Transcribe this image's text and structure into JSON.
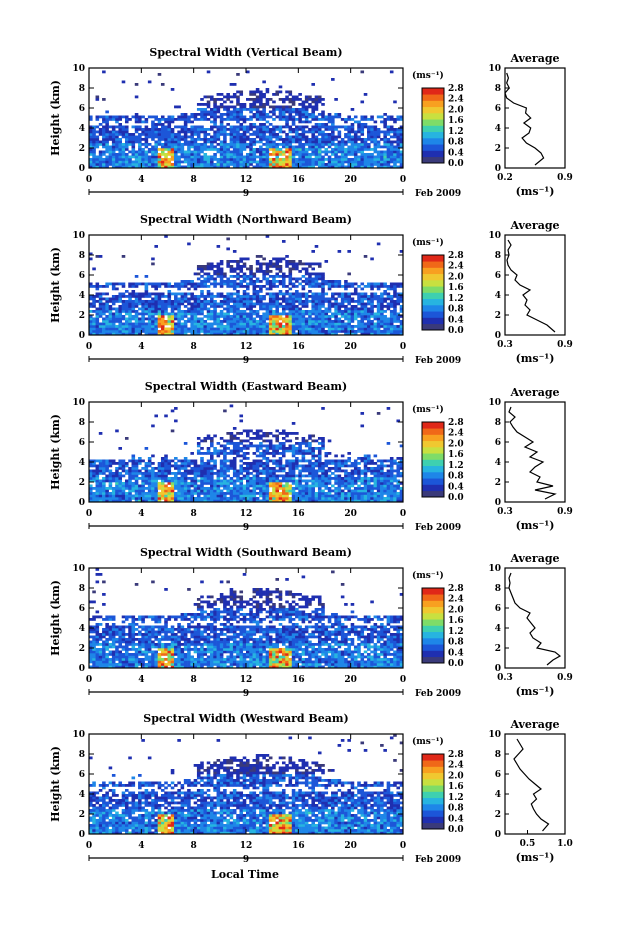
{
  "figure": {
    "x_axis_label": "Local Time",
    "date_label": "Feb 2009",
    "colorbar_unit": "(ms⁻¹)",
    "colorbar_ticks": [
      "0.0",
      "0.4",
      "0.8",
      "1.2",
      "1.6",
      "2.0",
      "2.4",
      "2.8"
    ],
    "colorbar_colors": [
      "#3a3a7a",
      "#1f2fb0",
      "#1c56d8",
      "#1e86e8",
      "#27b4e0",
      "#3ed0b0",
      "#7edc68",
      "#c8e040",
      "#f0c830",
      "#f8a020",
      "#f06818",
      "#e02818"
    ],
    "time_ticks": [
      "0",
      "4",
      "8",
      "12",
      "16",
      "20",
      "0"
    ],
    "day_label": "9",
    "height_ticks": [
      "0",
      "2",
      "4",
      "6",
      "8",
      "10"
    ],
    "height_label": "Height (km)",
    "profile_title": "Average",
    "profile_unit": "(ms⁻¹)"
  },
  "chart_data": [
    {
      "type": "heatmap",
      "title": "Spectral Width (Vertical Beam)",
      "ylabel": "Height (km)",
      "ylim": [
        0,
        10
      ],
      "xlim": [
        0,
        24
      ],
      "colorbar_range": [
        0.0,
        2.8
      ],
      "profile": {
        "title": "Average",
        "xlabel": "(ms⁻¹)",
        "x_ticks": [
          "0.2",
          "0.9"
        ],
        "xlim": [
          0.2,
          0.9
        ],
        "heights": [
          0.3,
          1.0,
          1.5,
          2.0,
          2.5,
          3.0,
          3.5,
          4.0,
          4.5,
          5.0,
          5.5,
          6.0,
          6.5,
          7.0,
          7.5,
          8.0,
          8.5,
          9.0,
          9.5
        ],
        "values": [
          0.55,
          0.65,
          0.62,
          0.55,
          0.45,
          0.4,
          0.48,
          0.5,
          0.42,
          0.5,
          0.44,
          0.45,
          0.3,
          0.22,
          0.2,
          0.25,
          0.22,
          0.24,
          0.22
        ]
      }
    },
    {
      "type": "heatmap",
      "title": "Spectral Width (Northward Beam)",
      "ylabel": "Height (km)",
      "ylim": [
        0,
        10
      ],
      "xlim": [
        0,
        24
      ],
      "colorbar_range": [
        0.0,
        2.8
      ],
      "profile": {
        "title": "Average",
        "xlabel": "(ms⁻¹)",
        "x_ticks": [
          "0.3",
          "0.9"
        ],
        "xlim": [
          0.3,
          0.9
        ],
        "heights": [
          0.3,
          1.0,
          1.5,
          2.0,
          2.5,
          3.0,
          3.5,
          4.0,
          4.5,
          5.0,
          5.5,
          6.0,
          6.5,
          7.0,
          7.5,
          8.0,
          8.5,
          9.0,
          9.5
        ],
        "values": [
          0.8,
          0.72,
          0.62,
          0.52,
          0.55,
          0.5,
          0.52,
          0.48,
          0.55,
          0.45,
          0.4,
          0.42,
          0.36,
          0.33,
          0.32,
          0.34,
          0.33,
          0.36,
          0.33
        ]
      }
    },
    {
      "type": "heatmap",
      "title": "Spectral Width (Eastward Beam)",
      "ylabel": "Height (km)",
      "ylim": [
        0,
        10
      ],
      "xlim": [
        0,
        24
      ],
      "colorbar_range": [
        0.0,
        2.8
      ],
      "profile": {
        "title": "Average",
        "xlabel": "(ms⁻¹)",
        "x_ticks": [
          "0.3",
          "0.9"
        ],
        "xlim": [
          0.3,
          0.9
        ],
        "heights": [
          0.3,
          0.8,
          1.2,
          1.6,
          2.0,
          2.5,
          3.0,
          3.5,
          4.0,
          4.5,
          5.0,
          5.5,
          6.0,
          6.5,
          7.0,
          7.5,
          8.0,
          8.5,
          9.0,
          9.5
        ],
        "values": [
          0.7,
          0.8,
          0.6,
          0.78,
          0.62,
          0.65,
          0.55,
          0.6,
          0.68,
          0.55,
          0.62,
          0.5,
          0.58,
          0.5,
          0.42,
          0.38,
          0.35,
          0.4,
          0.34,
          0.36
        ]
      }
    },
    {
      "type": "heatmap",
      "title": "Spectral Width (Southward Beam)",
      "ylabel": "Height (km)",
      "ylim": [
        0,
        10
      ],
      "xlim": [
        0,
        24
      ],
      "colorbar_range": [
        0.0,
        2.8
      ],
      "profile": {
        "title": "Average",
        "xlabel": "(ms⁻¹)",
        "x_ticks": [
          "0.3",
          "0.9"
        ],
        "xlim": [
          0.3,
          0.9
        ],
        "heights": [
          0.3,
          0.8,
          1.2,
          1.6,
          2.0,
          2.5,
          3.0,
          3.5,
          4.0,
          4.5,
          5.0,
          5.5,
          6.0,
          6.5,
          7.0,
          7.5,
          8.0,
          8.5,
          9.0,
          9.5
        ],
        "values": [
          0.72,
          0.78,
          0.85,
          0.8,
          0.62,
          0.66,
          0.58,
          0.55,
          0.6,
          0.56,
          0.52,
          0.55,
          0.45,
          0.4,
          0.38,
          0.36,
          0.34,
          0.35,
          0.34,
          0.36
        ]
      }
    },
    {
      "type": "heatmap",
      "title": "Spectral Width (Westward Beam)",
      "ylabel": "Height (km)",
      "ylim": [
        0,
        10
      ],
      "xlim": [
        0,
        24
      ],
      "colorbar_range": [
        0.0,
        2.8
      ],
      "profile": {
        "title": "Average",
        "xlabel": "(ms⁻¹)",
        "x_ticks": [
          "0.5",
          "1.0"
        ],
        "xlim": [
          0.2,
          1.0
        ],
        "heights": [
          0.3,
          1.0,
          1.5,
          2.0,
          2.5,
          3.0,
          3.5,
          4.0,
          4.5,
          5.0,
          5.5,
          6.0,
          6.5,
          7.0,
          7.5,
          8.0,
          8.5,
          9.0,
          9.5
        ],
        "values": [
          0.7,
          0.78,
          0.68,
          0.62,
          0.58,
          0.55,
          0.62,
          0.58,
          0.68,
          0.6,
          0.52,
          0.46,
          0.4,
          0.36,
          0.32,
          0.38,
          0.44,
          0.4,
          0.36
        ]
      }
    }
  ]
}
